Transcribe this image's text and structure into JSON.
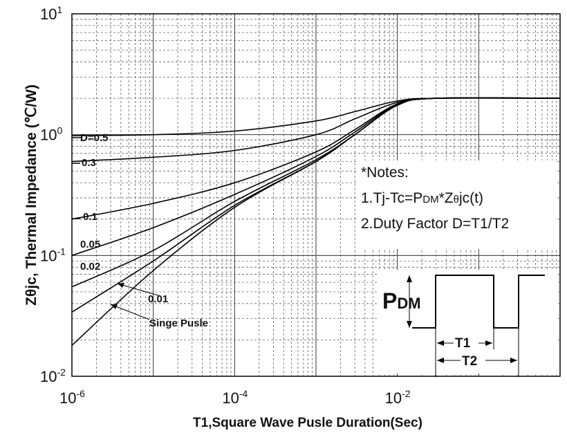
{
  "chart_data": {
    "type": "line",
    "x_scale": "log",
    "y_scale": "log",
    "xlim": [
      1e-06,
      1
    ],
    "ylim": [
      0.01,
      10
    ],
    "xlabel": "T1,Square Wave Pusle Duration(Sec)",
    "ylabel": "Zθjc, Thermal  Impedance (℃/W)",
    "grid": true,
    "x_ticks": [
      {
        "base": "10",
        "exp": "-6"
      },
      {
        "base": "10",
        "exp": "-4"
      },
      {
        "base": "10",
        "exp": "-2"
      }
    ],
    "y_ticks": [
      {
        "base": "10",
        "exp": "-2"
      },
      {
        "base": "10",
        "exp": "-1"
      },
      {
        "base": "10",
        "exp": "0",
        "text": "10"
      },
      {
        "base": "10",
        "exp": "1"
      }
    ],
    "y_tick_100_text": "10",
    "series": [
      {
        "name": "D=0.5",
        "x": [
          1e-06,
          1e-05,
          0.0001,
          0.001,
          0.003,
          0.01,
          0.03,
          1
        ],
        "y": [
          0.98,
          1.0,
          1.07,
          1.3,
          1.55,
          1.9,
          2.0,
          2.0
        ]
      },
      {
        "name": "0.3",
        "x": [
          1e-06,
          1e-05,
          0.0001,
          0.001,
          0.003,
          0.01,
          0.03,
          1
        ],
        "y": [
          0.6,
          0.65,
          0.74,
          1.0,
          1.35,
          1.85,
          2.0,
          2.0
        ]
      },
      {
        "name": "0.1",
        "x": [
          1e-06,
          1e-05,
          0.0001,
          0.001,
          0.003,
          0.01,
          0.03,
          1
        ],
        "y": [
          0.2,
          0.27,
          0.4,
          0.72,
          1.1,
          1.8,
          2.0,
          2.0
        ]
      },
      {
        "name": "0.05",
        "x": [
          1e-06,
          1e-05,
          0.0001,
          0.001,
          0.003,
          0.01,
          0.03,
          1
        ],
        "y": [
          0.1,
          0.17,
          0.32,
          0.66,
          1.05,
          1.78,
          2.0,
          2.0
        ]
      },
      {
        "name": "0.02",
        "x": [
          1e-06,
          1e-05,
          0.0001,
          0.001,
          0.003,
          0.01,
          0.03,
          1
        ],
        "y": [
          0.055,
          0.11,
          0.28,
          0.62,
          1.0,
          1.76,
          2.0,
          2.0
        ]
      },
      {
        "name": "0.01",
        "x": [
          1e-06,
          1e-05,
          0.0001,
          0.001,
          0.003,
          0.01,
          0.03,
          1
        ],
        "y": [
          0.034,
          0.09,
          0.26,
          0.6,
          1.0,
          1.75,
          2.0,
          2.0
        ]
      },
      {
        "name": "Singe Pusle",
        "x": [
          1e-06,
          1e-05,
          0.0001,
          0.001,
          0.003,
          0.01,
          0.03,
          1
        ],
        "y": [
          0.018,
          0.075,
          0.25,
          0.6,
          1.0,
          1.75,
          2.0,
          2.0
        ]
      }
    ],
    "annotations": {
      "notes_title": "*Notes:",
      "note1_prefix": "1.Tj-Tc=P",
      "note1_sub": "DM",
      "note1_mid": "*Z",
      "note1_theta": "θ",
      "note1_suffix": "jc(t)",
      "note2": "2.Duty Factor D=T1/T2",
      "pulse_p": "P",
      "pulse_sub": "DM",
      "t1": "T1",
      "t2": "T2"
    }
  }
}
